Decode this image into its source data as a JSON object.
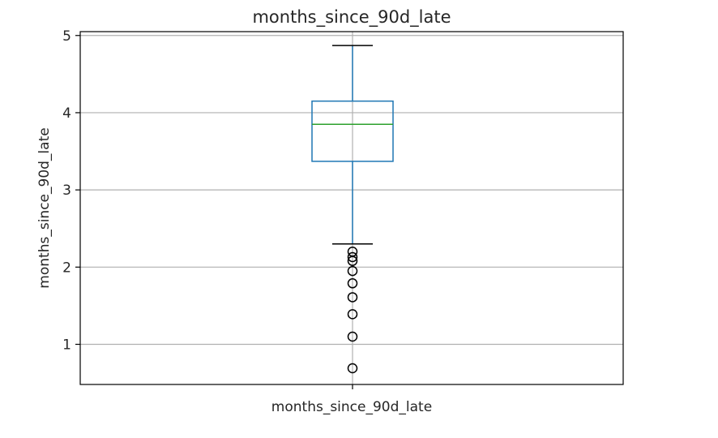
{
  "chart_data": {
    "type": "box",
    "title": "months_since_90d_late",
    "xlabel": "",
    "ylabel": "months_since_90d_late",
    "categories": [
      "months_since_90d_late"
    ],
    "ylim": [
      0.48,
      5.05
    ],
    "yticks": [
      1,
      2,
      3,
      4,
      5
    ],
    "grid": true,
    "box": {
      "whisker_low": 2.3,
      "q1": 3.37,
      "median": 3.85,
      "q3": 4.15,
      "whisker_high": 4.87
    },
    "outliers": [
      2.2,
      2.13,
      2.08,
      1.95,
      1.79,
      1.61,
      1.39,
      1.1,
      0.69
    ],
    "colors": {
      "box": "#1f77b4",
      "median": "#2ca02c",
      "whisker": "#1f77b4",
      "cap": "#000000",
      "outlier": "#000000",
      "grid": "#b0b0b0",
      "axes": "#000000"
    }
  }
}
